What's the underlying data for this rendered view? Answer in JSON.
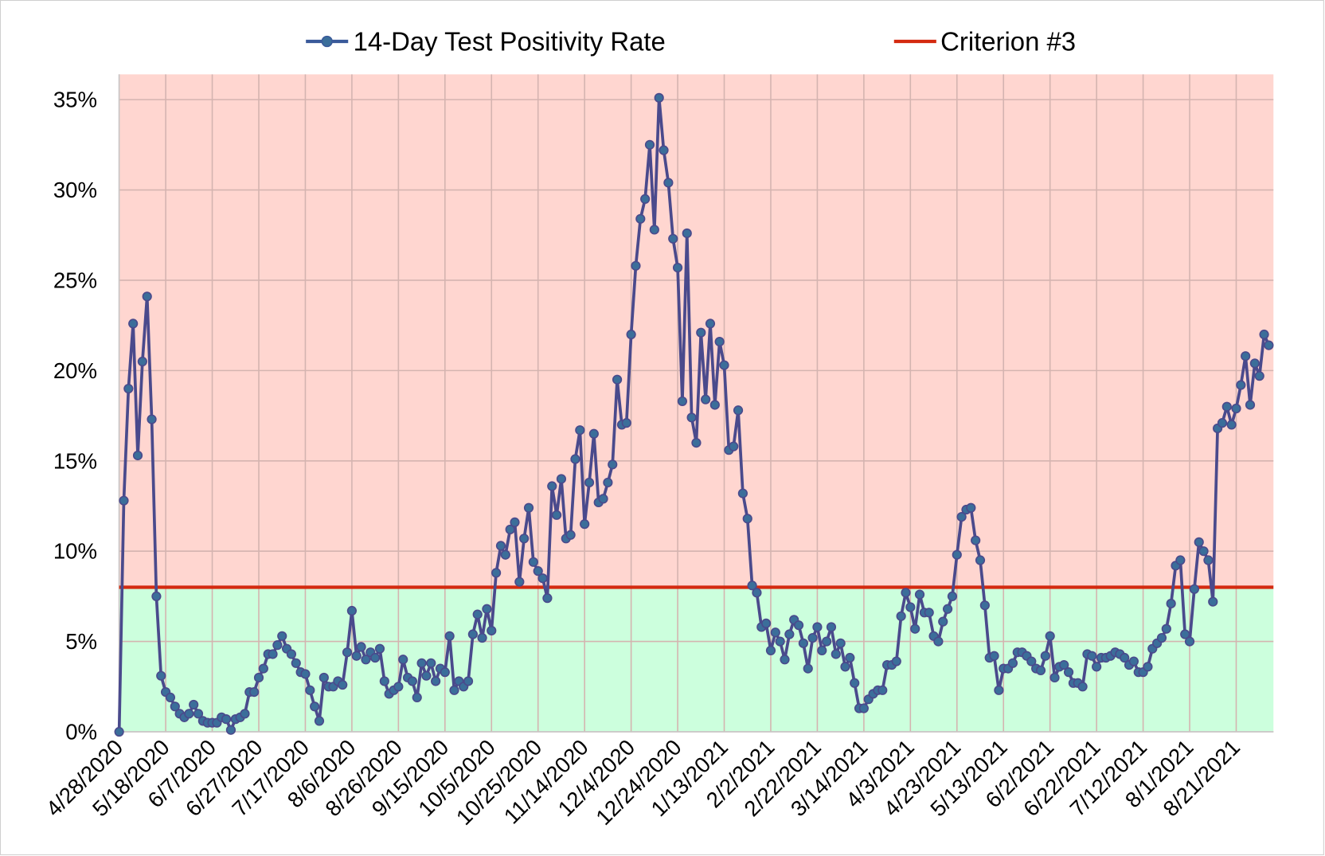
{
  "chart_data": {
    "type": "line",
    "categories": [
      "4/28/2020",
      null,
      null,
      null,
      null,
      null,
      null,
      null,
      null,
      null,
      "5/18/2020",
      null,
      null,
      null,
      null,
      null,
      null,
      null,
      null,
      null,
      "6/7/2020",
      null,
      null,
      null,
      null,
      null,
      null,
      null,
      null,
      null,
      "6/27/2020",
      null,
      null,
      null,
      null,
      null,
      null,
      null,
      null,
      null,
      "7/17/2020",
      null,
      null,
      null,
      null,
      null,
      null,
      null,
      null,
      null,
      "8/6/2020",
      null,
      null,
      null,
      null,
      null,
      null,
      null,
      null,
      null,
      "8/26/2020",
      null,
      null,
      null,
      null,
      null,
      null,
      null,
      null,
      null,
      "9/15/2020",
      null,
      null,
      null,
      null,
      null,
      null,
      null,
      null,
      null,
      "10/5/2020",
      null,
      null,
      null,
      null,
      null,
      null,
      null,
      null,
      null,
      "10/25/2020",
      null,
      null,
      null,
      null,
      null,
      null,
      null,
      null,
      null,
      "11/14/2020",
      null,
      null,
      null,
      null,
      null,
      null,
      null,
      null,
      null,
      "12/4/2020",
      null,
      null,
      null,
      null,
      null,
      null,
      null,
      null,
      null,
      "12/24/2020",
      null,
      null,
      null,
      null,
      null,
      null,
      null,
      null,
      null,
      "1/13/2021",
      null,
      null,
      null,
      null,
      null,
      null,
      null,
      null,
      null,
      "2/2/2021",
      null,
      null,
      null,
      null,
      null,
      null,
      null,
      null,
      null,
      "2/22/2021",
      null,
      null,
      null,
      null,
      null,
      null,
      null,
      null,
      null,
      "3/14/2021",
      null,
      null,
      null,
      null,
      null,
      null,
      null,
      null,
      null,
      "4/3/2021",
      null,
      null,
      null,
      null,
      null,
      null,
      null,
      null,
      null,
      "4/23/2021",
      null,
      null,
      null,
      null,
      null,
      null,
      null,
      null,
      null,
      "5/13/2021",
      null,
      null,
      null,
      null,
      null,
      null,
      null,
      null,
      null,
      "6/2/2021",
      null,
      null,
      null,
      null,
      null,
      null,
      null,
      null,
      null,
      "6/22/2021",
      null,
      null,
      null,
      null,
      null,
      null,
      null,
      null,
      null,
      "7/12/2021",
      null,
      null,
      null,
      null,
      null,
      null,
      null,
      null,
      null,
      "8/1/2021",
      null,
      null,
      null,
      null,
      null,
      null,
      null,
      null,
      null,
      "8/21/2021",
      null,
      null,
      null,
      null,
      null,
      null,
      null
    ],
    "series": [
      {
        "name": "14-Day Test Positivity Rate",
        "color": "#4a4a8c",
        "marker_color": "#3b6e9a",
        "values": [
          0,
          12.8,
          19,
          22.6,
          15.3,
          20.5,
          24.1,
          17.3,
          7.5,
          3.1,
          2.2,
          1.9,
          1.4,
          1.0,
          0.8,
          1.0,
          1.5,
          1.0,
          0.6,
          0.5,
          0.5,
          0.5,
          0.8,
          0.7,
          0.1,
          0.7,
          0.8,
          1.0,
          2.2,
          2.2,
          3.0,
          3.5,
          4.3,
          4.3,
          4.8,
          5.3,
          4.6,
          4.3,
          3.8,
          3.3,
          3.2,
          2.3,
          1.4,
          0.6,
          3.0,
          2.5,
          2.5,
          2.8,
          2.6,
          4.4,
          6.7,
          4.2,
          4.7,
          4.0,
          4.4,
          4.1,
          4.6,
          2.8,
          2.1,
          2.3,
          2.5,
          4.0,
          3.0,
          2.8,
          1.9,
          3.8,
          3.1,
          3.8,
          2.8,
          3.5,
          3.3,
          5.3,
          2.3,
          2.8,
          2.5,
          2.8,
          5.4,
          6.5,
          5.2,
          6.8,
          5.6,
          8.8,
          10.3,
          9.8,
          11.2,
          11.6,
          8.3,
          10.7,
          12.4,
          9.4,
          8.9,
          8.5,
          7.4,
          13.6,
          12.0,
          14.0,
          10.7,
          10.9,
          15.1,
          16.7,
          11.5,
          13.8,
          16.5,
          12.7,
          12.9,
          13.8,
          14.8,
          19.5,
          17.0,
          17.1,
          22.0,
          25.8,
          28.4,
          29.5,
          32.5,
          27.8,
          35.1,
          32.2,
          30.4,
          27.3,
          25.7,
          18.3,
          27.6,
          17.4,
          16.0,
          22.1,
          18.4,
          22.6,
          18.1,
          21.6,
          20.3,
          15.6,
          15.8,
          17.8,
          13.2,
          11.8,
          8.1,
          7.7,
          5.8,
          6.0,
          4.5,
          5.5,
          5.0,
          4.0,
          5.4,
          6.2,
          5.9,
          4.9,
          3.5,
          5.2,
          5.8,
          4.5,
          5.0,
          5.8,
          4.3,
          4.9,
          3.6,
          4.1,
          2.7,
          1.3,
          1.3,
          1.8,
          2.1,
          2.3,
          2.3,
          3.7,
          3.7,
          3.9,
          6.4,
          7.7,
          6.9,
          5.7,
          7.6,
          6.6,
          6.6,
          5.3,
          5.0,
          6.1,
          6.8,
          7.5,
          9.8,
          11.9,
          12.3,
          12.4,
          10.6,
          9.5,
          7.0,
          4.1,
          4.2,
          2.3,
          3.5,
          3.5,
          3.8,
          4.4,
          4.4,
          4.2,
          3.9,
          3.5,
          3.4,
          4.2,
          5.3,
          3.0,
          3.6,
          3.7,
          3.3,
          2.7,
          2.7,
          2.5,
          4.3,
          4.2,
          3.6,
          4.1,
          4.1,
          4.2,
          4.4,
          4.3,
          4.1,
          3.7,
          3.9,
          3.3,
          3.3,
          3.6,
          4.6,
          4.9,
          5.2,
          5.7,
          7.1,
          9.2,
          9.5,
          5.4,
          5.0,
          7.9,
          10.5,
          10.0,
          9.5,
          7.2,
          16.8,
          17.1,
          18.0,
          17.0,
          17.9,
          19.2,
          20.8,
          18.1,
          20.4,
          19.7,
          22.0,
          21.4
        ]
      }
    ],
    "reference_line": {
      "name": "Criterion #3",
      "color": "#d42a10",
      "value": 8
    },
    "above_color": "#ffd6d0",
    "below_color": "#ccffdd",
    "ylim": [
      0,
      36.4
    ],
    "yticks": [
      {
        "value": 0,
        "label": "0%"
      },
      {
        "value": 5,
        "label": "5%"
      },
      {
        "value": 10,
        "label": "10%"
      },
      {
        "value": 15,
        "label": "15%"
      },
      {
        "value": 20,
        "label": "20%"
      },
      {
        "value": 25,
        "label": "25%"
      },
      {
        "value": 30,
        "label": "30%"
      },
      {
        "value": 35,
        "label": "35%"
      }
    ],
    "grid": true,
    "legend": "top"
  }
}
